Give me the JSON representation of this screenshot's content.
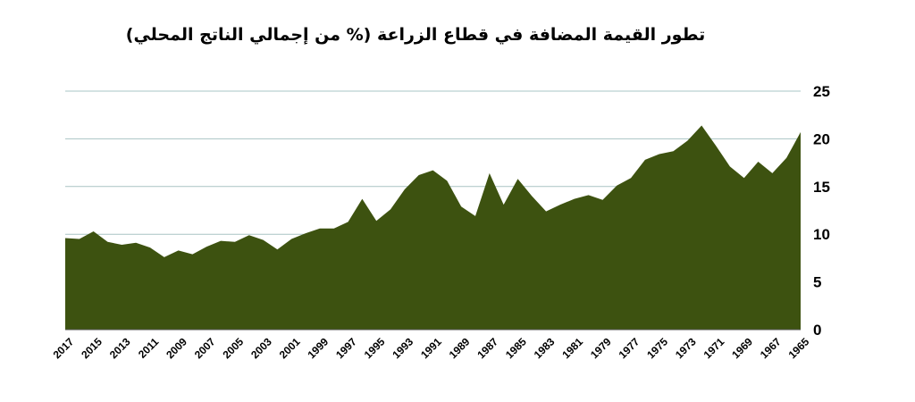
{
  "chart_data": {
    "type": "area",
    "title": "تطور القيمة المضافة في قطاع الزراعة (% من إجمالي الناتج المحلي)",
    "x_reversed": true,
    "x": [
      1965,
      1966,
      1967,
      1968,
      1969,
      1970,
      1971,
      1972,
      1973,
      1974,
      1975,
      1976,
      1977,
      1978,
      1979,
      1980,
      1981,
      1982,
      1983,
      1984,
      1985,
      1986,
      1987,
      1988,
      1989,
      1990,
      1991,
      1992,
      1993,
      1994,
      1995,
      1996,
      1997,
      1998,
      1999,
      2000,
      2001,
      2002,
      2003,
      2004,
      2005,
      2006,
      2007,
      2008,
      2009,
      2010,
      2011,
      2012,
      2013,
      2014,
      2015,
      2016,
      2017
    ],
    "values": [
      20.7,
      18.0,
      16.4,
      17.6,
      15.9,
      17.1,
      19.3,
      21.4,
      19.8,
      18.7,
      18.4,
      17.8,
      15.9,
      15.1,
      13.6,
      14.1,
      13.7,
      13.1,
      12.4,
      14.0,
      15.8,
      13.1,
      16.4,
      11.9,
      12.9,
      15.6,
      16.7,
      16.2,
      14.7,
      12.6,
      11.4,
      13.7,
      11.3,
      10.6,
      10.6,
      10.1,
      9.5,
      8.4,
      9.4,
      9.9,
      9.2,
      9.3,
      8.7,
      7.9,
      8.3,
      7.6,
      8.6,
      9.1,
      8.9,
      9.2,
      10.3,
      9.5,
      9.6
    ],
    "x_tick_labels": [
      "2017",
      "2015",
      "2013",
      "2011",
      "2009",
      "2007",
      "2005",
      "2003",
      "2001",
      "1999",
      "1997",
      "1995",
      "1993",
      "1991",
      "1989",
      "1987",
      "1985",
      "1983",
      "1981",
      "1979",
      "1977",
      "1975",
      "1973",
      "1971",
      "1969",
      "1967",
      "1965"
    ],
    "y_ticks": [
      "0",
      "5",
      "10",
      "15",
      "20",
      "25"
    ],
    "ylim": [
      0,
      25
    ],
    "y_axis_side": "right",
    "grid": true,
    "fill_color": "#3d5210",
    "grid_color": "#a9c4c4"
  }
}
